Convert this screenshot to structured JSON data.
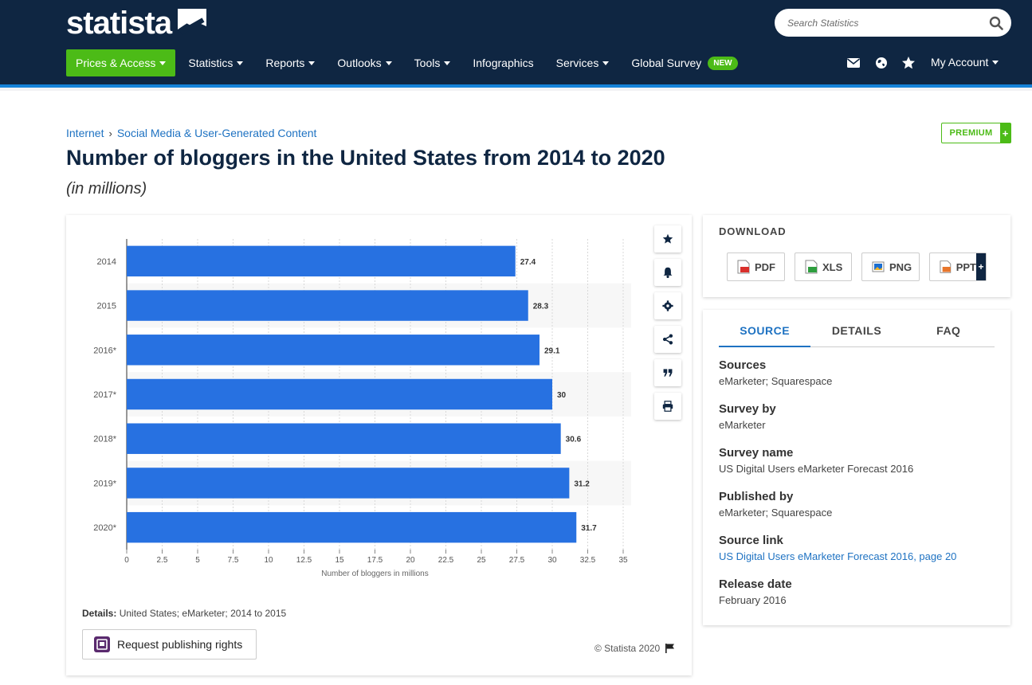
{
  "header": {
    "logo_text": "statista",
    "search_placeholder": "Search Statistics",
    "nav": [
      {
        "label": "Prices & Access"
      },
      {
        "label": "Statistics"
      },
      {
        "label": "Reports"
      },
      {
        "label": "Outlooks"
      },
      {
        "label": "Tools"
      },
      {
        "label": "Infographics"
      },
      {
        "label": "Services"
      },
      {
        "label": "Global Survey"
      }
    ],
    "new_badge": "NEW",
    "account_label": "My Account"
  },
  "breadcrumb": {
    "items": [
      "Internet",
      "Social Media & User-Generated Content"
    ],
    "separator": "›"
  },
  "premium_label": "PREMIUM",
  "premium_plus": "+",
  "title": "Number of bloggers in the United States from 2014 to 2020",
  "subtitle": "(in millions)",
  "chart_data": {
    "type": "bar",
    "orientation": "horizontal",
    "categories": [
      "2014",
      "2015",
      "2016*",
      "2017*",
      "2018*",
      "2019*",
      "2020*"
    ],
    "values": [
      27.4,
      28.3,
      29.1,
      30,
      30.6,
      31.2,
      31.7
    ],
    "value_labels": [
      "27.4",
      "28.3",
      "29.1",
      "30",
      "30.6",
      "31.2",
      "31.7"
    ],
    "xlabel": "Number of bloggers in millions",
    "ylabel": "",
    "xlim": [
      0,
      35
    ],
    "xticks": [
      "0",
      "2.5",
      "5",
      "7.5",
      "10",
      "12.5",
      "15",
      "17.5",
      "20",
      "22.5",
      "25",
      "27.5",
      "30",
      "32.5",
      "35"
    ],
    "bar_color": "#2771e1",
    "grid": true
  },
  "chart_footer": {
    "details_label": "Details:",
    "details_text": "United States; eMarketer; 2014 to 2015",
    "request_label": "Request publishing rights",
    "copyright": "© Statista 2020"
  },
  "download": {
    "title": "DOWNLOAD",
    "buttons": [
      {
        "label": "PDF",
        "color": "#d9302c"
      },
      {
        "label": "XLS",
        "color": "#2e9e3e"
      },
      {
        "label": "PNG",
        "color": "#1c6fd1"
      },
      {
        "label": "PPT",
        "color": "#e8762b"
      }
    ],
    "plus": "+"
  },
  "info": {
    "tabs": [
      "SOURCE",
      "DETAILS",
      "FAQ"
    ],
    "rows": [
      {
        "label": "Sources",
        "value": "eMarketer; Squarespace"
      },
      {
        "label": "Survey by",
        "value": "eMarketer"
      },
      {
        "label": "Survey name",
        "value": "US Digital Users eMarketer Forecast 2016"
      },
      {
        "label": "Published by",
        "value": "eMarketer; Squarespace"
      },
      {
        "label": "Source link",
        "value": "US Digital Users eMarketer Forecast 2016, page 20"
      },
      {
        "label": "Release date",
        "value": "February 2016"
      }
    ]
  },
  "colors": {
    "navy": "#0f2642",
    "accent_blue": "#1582d8",
    "green": "#4cbb17",
    "link": "#1e72c2"
  }
}
